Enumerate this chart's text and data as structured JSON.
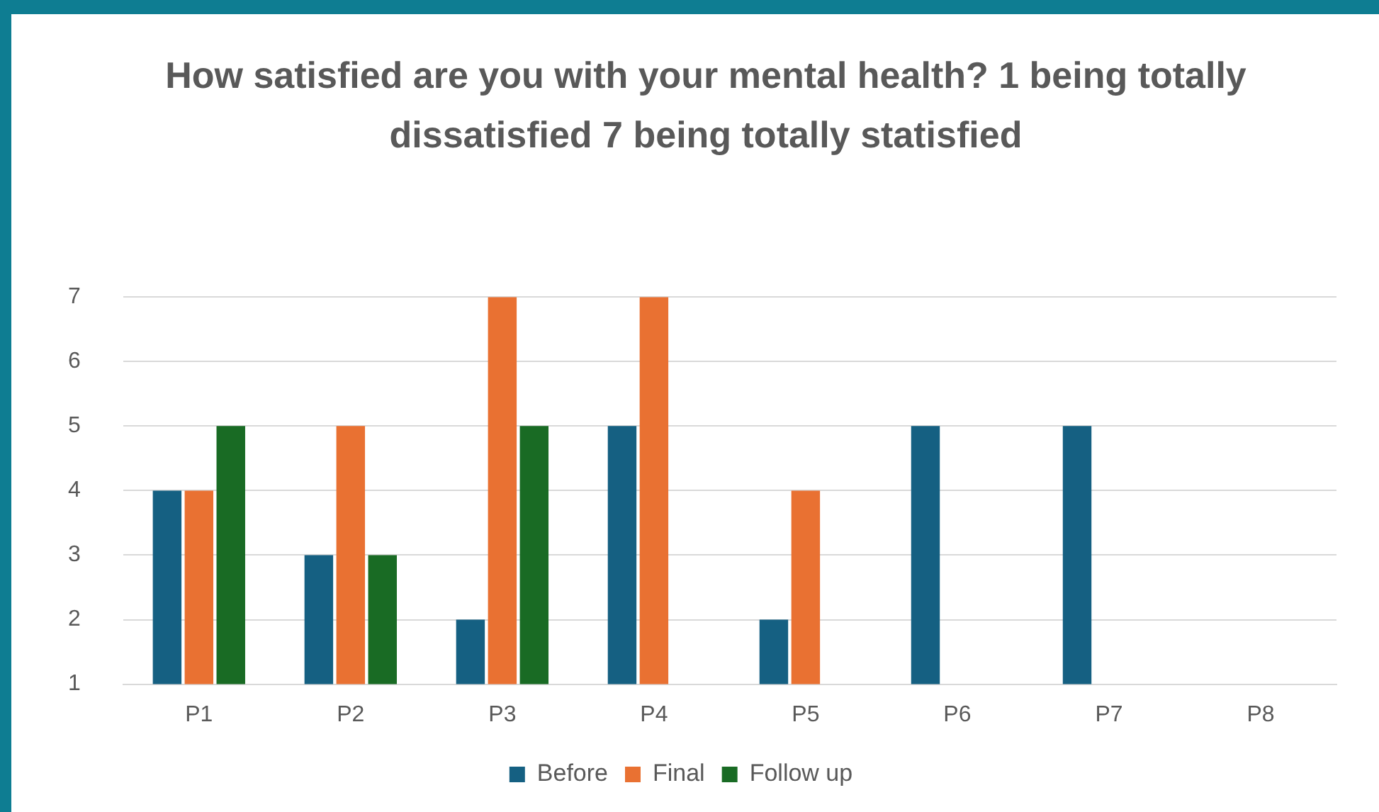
{
  "chart_data": {
    "type": "bar",
    "title": "How satisfied are you with your mental health? 1 being totally dissatisfied  7 being totally statisfied",
    "categories": [
      "P1",
      "P2",
      "P3",
      "P4",
      "P5",
      "P6",
      "P7",
      "P8"
    ],
    "series": [
      {
        "name": "Before",
        "color": "#156082",
        "values": [
          4,
          3,
          2,
          5,
          2,
          5,
          5,
          null
        ]
      },
      {
        "name": "Final",
        "color": "#e97132",
        "values": [
          4,
          5,
          7,
          7,
          4,
          null,
          null,
          null
        ]
      },
      {
        "name": "Follow up",
        "color": "#196b24",
        "values": [
          5,
          3,
          5,
          null,
          null,
          null,
          null,
          null
        ]
      }
    ],
    "ylim": [
      1,
      7
    ],
    "yticks": [
      1,
      2,
      3,
      4,
      5,
      6,
      7
    ],
    "grid": "y",
    "legend": "bottom"
  }
}
